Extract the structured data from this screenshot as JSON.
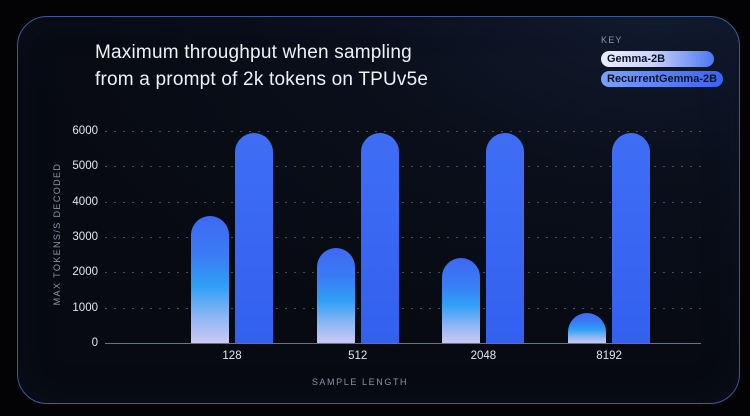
{
  "title": {
    "line1": "Maximum throughput when sampling",
    "line2": "from a prompt of 2k tokens on TPUv5e"
  },
  "legend": {
    "heading": "KEY",
    "items": [
      {
        "label": "Gemma-2B",
        "color_start": "#eceefb",
        "color_end": "#4a77f3"
      },
      {
        "label": "RecurrentGemma-2B",
        "color_start": "#7ba2f5",
        "color_end": "#3a63f1"
      }
    ]
  },
  "chart_data": {
    "type": "bar",
    "title": "Maximum throughput when sampling from a prompt of 2k tokens on TPUv5e",
    "categories": [
      "128",
      "512",
      "2048",
      "8192"
    ],
    "series": [
      {
        "name": "Gemma-2B",
        "values": [
          3600,
          2700,
          2400,
          850
        ]
      },
      {
        "name": "RecurrentGemma-2B",
        "values": [
          5950,
          5950,
          5950,
          5950
        ]
      }
    ],
    "xlabel": "SAMPLE LENGTH",
    "ylabel": "MAX TOKENS/S DECODED",
    "ylim": [
      0,
      6000
    ],
    "yticks": [
      0,
      1000,
      2000,
      3000,
      4000,
      5000,
      6000
    ],
    "grid": "horizontal-dotted",
    "legend_position": "top-right"
  },
  "colors": {
    "background": "#030305",
    "card_background": "#0a0f1b",
    "card_border": "#3d5a96",
    "recurrent_bar": "#3a66f2",
    "gemma_bar_top": "#3f68f4",
    "gemma_bar_mid": "#2f9ff5",
    "gemma_bar_bottom": "#ccc9f3",
    "tick_text": "#e2e6ed",
    "muted_text": "#8b93a3",
    "zero_axis": "#6b7280"
  }
}
